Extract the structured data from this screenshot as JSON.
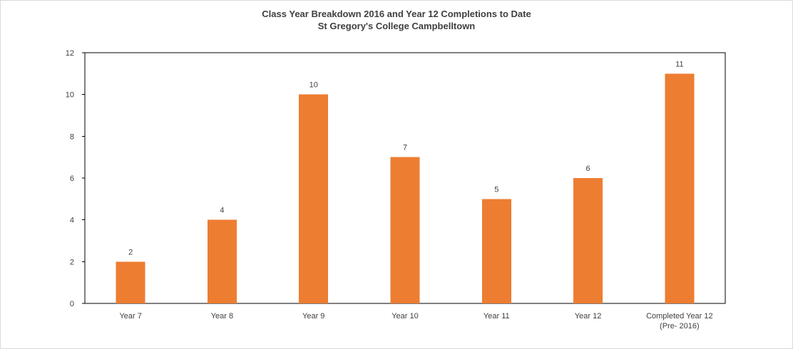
{
  "chart_data": {
    "type": "bar",
    "title_lines": [
      "Class Year Breakdown 2016  and Year 12 Completions to Date",
      "St Gregory's College Campbelltown"
    ],
    "categories": [
      [
        "Year 7"
      ],
      [
        "Year 8"
      ],
      [
        "Year 9"
      ],
      [
        "Year 10"
      ],
      [
        "Year 11"
      ],
      [
        "Year 12"
      ],
      [
        "Completed Year 12",
        "(Pre- 2016)"
      ]
    ],
    "values": [
      2,
      4,
      10,
      7,
      5,
      6,
      11
    ],
    "data_labels": [
      "2",
      "4",
      "10",
      "7",
      "5",
      "6",
      "11"
    ],
    "ylim": [
      0,
      12
    ],
    "yticks": [
      0,
      2,
      4,
      6,
      8,
      10,
      12
    ],
    "bar_color": "#ED7D31",
    "grid": false,
    "legend": "none",
    "xlabel": "",
    "ylabel": ""
  }
}
